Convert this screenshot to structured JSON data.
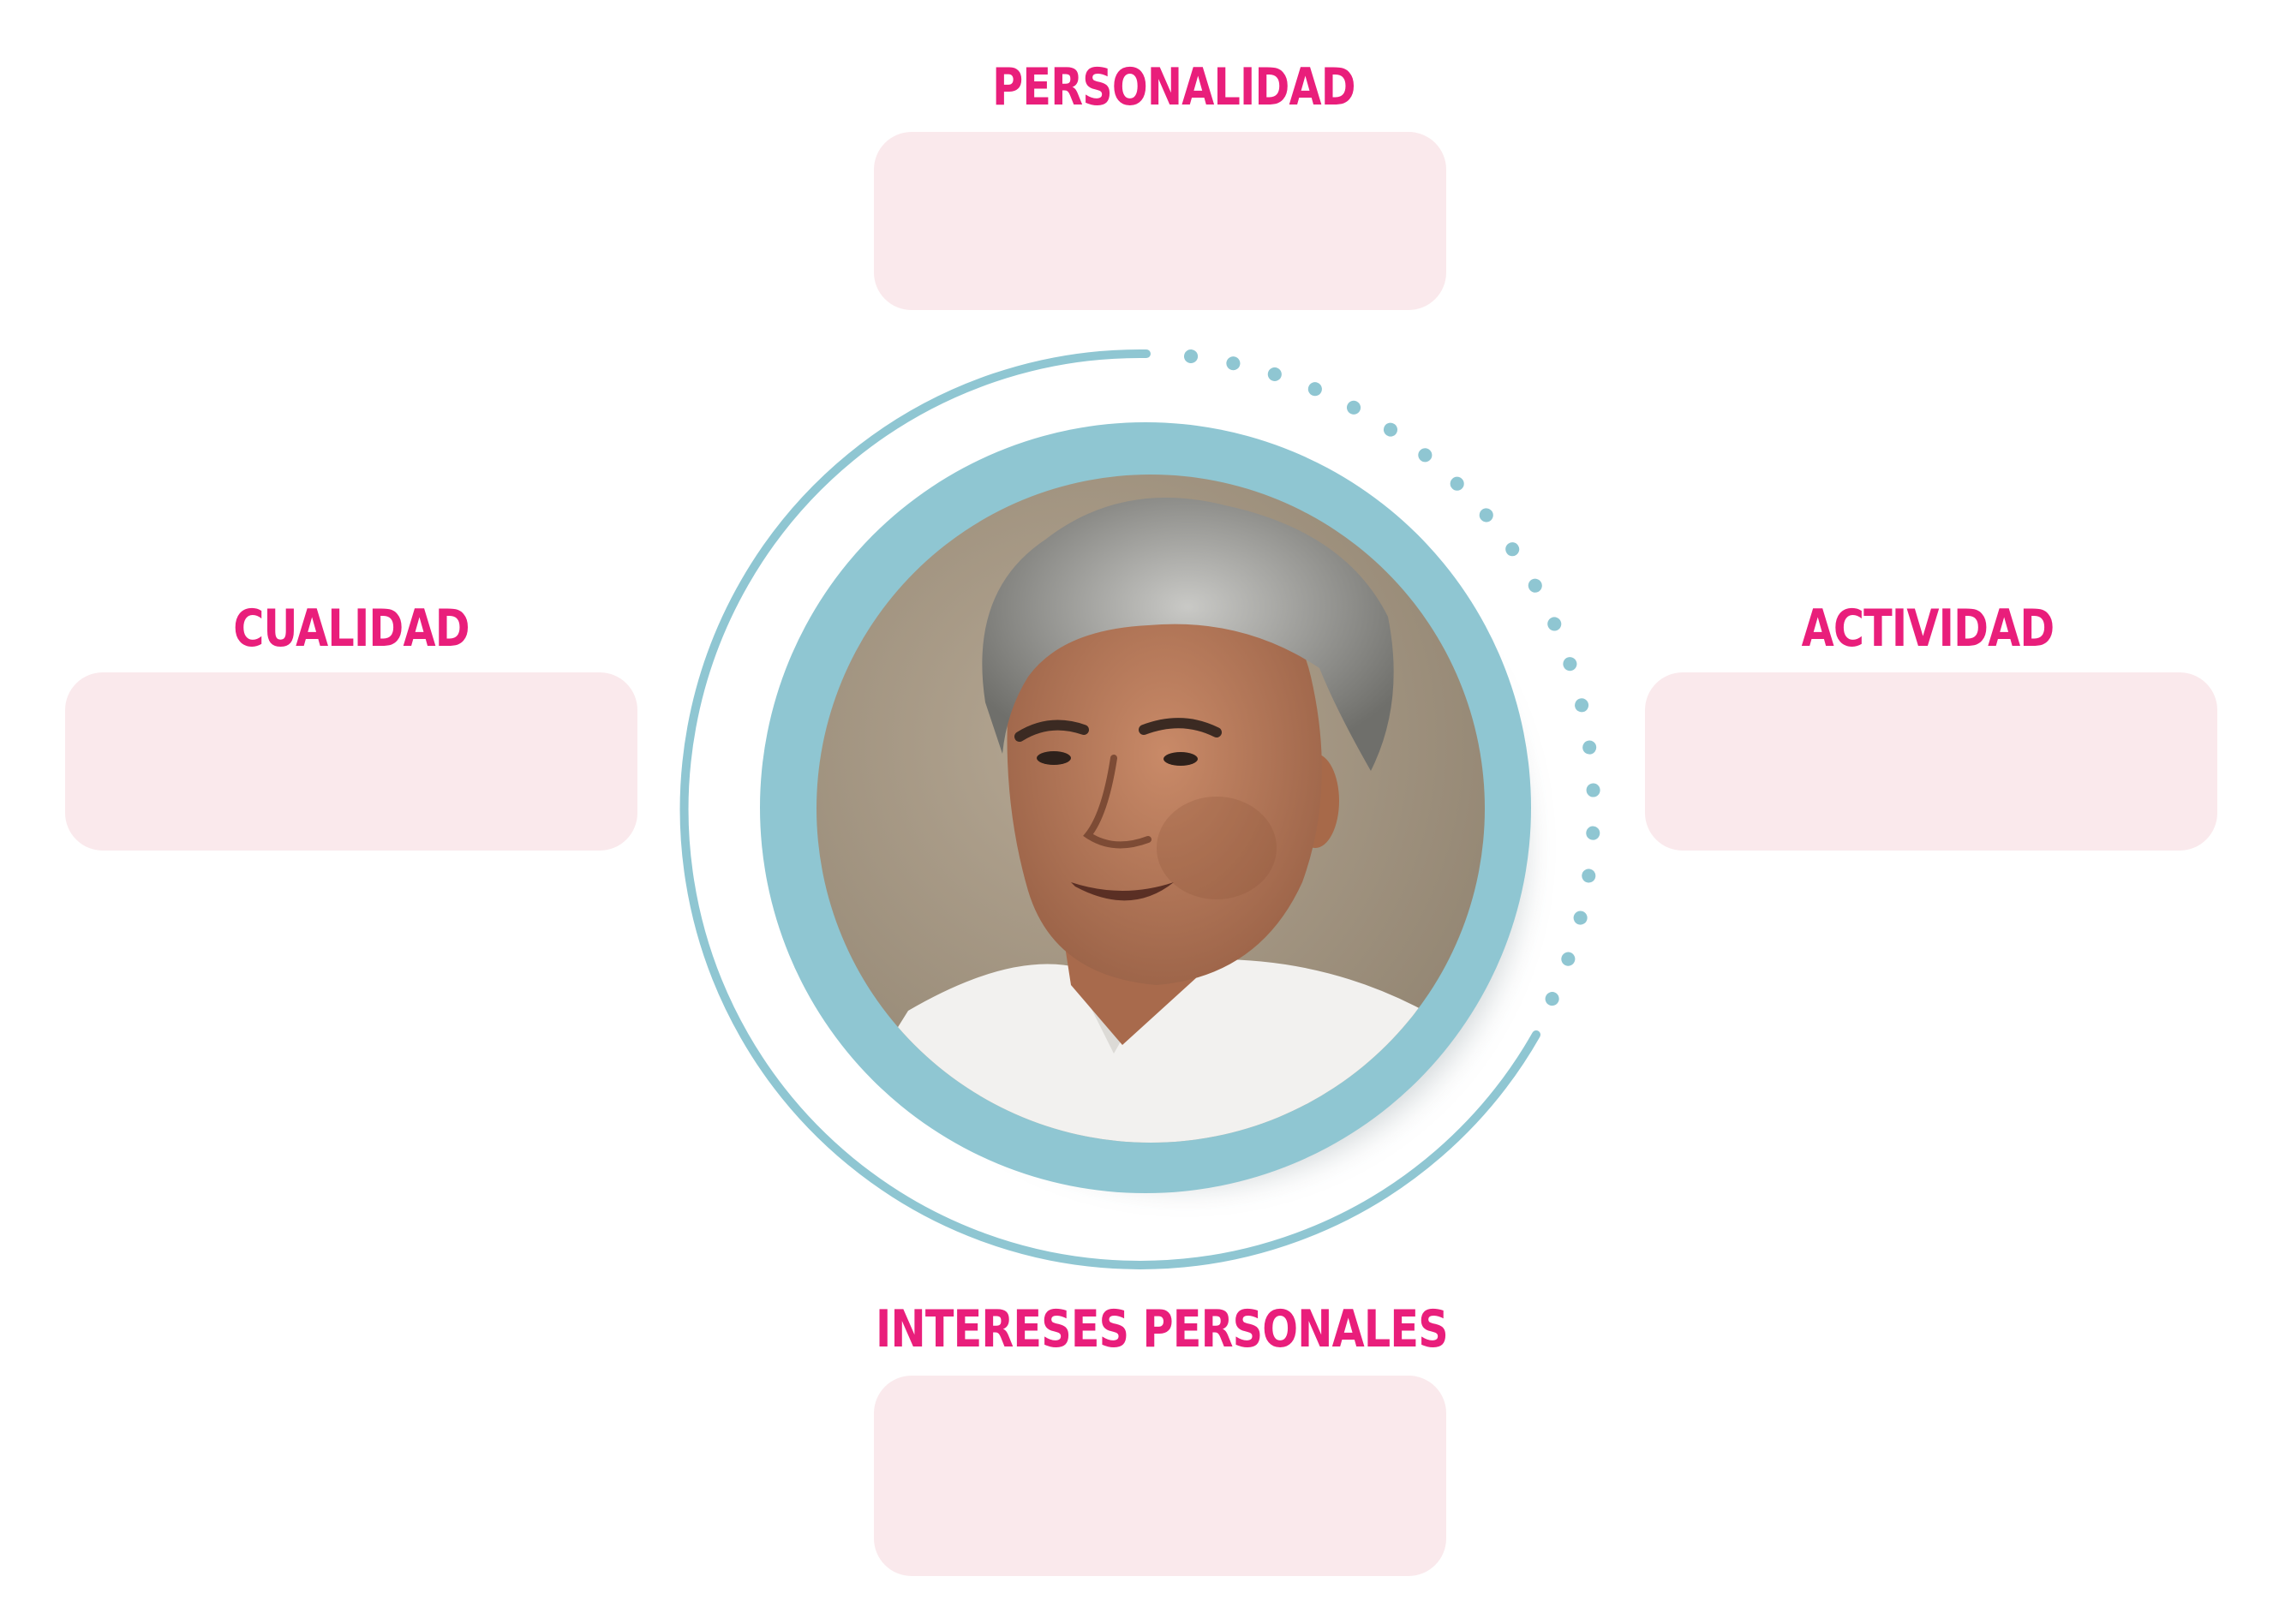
{
  "labels": {
    "top": "PERSONALIDAD",
    "left": "CUALIDAD",
    "right": "ACTIVIDAD",
    "bottom": "INTERESES PERSONALES"
  },
  "colors": {
    "label": "#e91e7b",
    "box_fill": "#fae9ec",
    "ring": "#8fc6d2",
    "photo_bg": "#a89a86"
  },
  "photo": {
    "subject": "man-portrait"
  }
}
